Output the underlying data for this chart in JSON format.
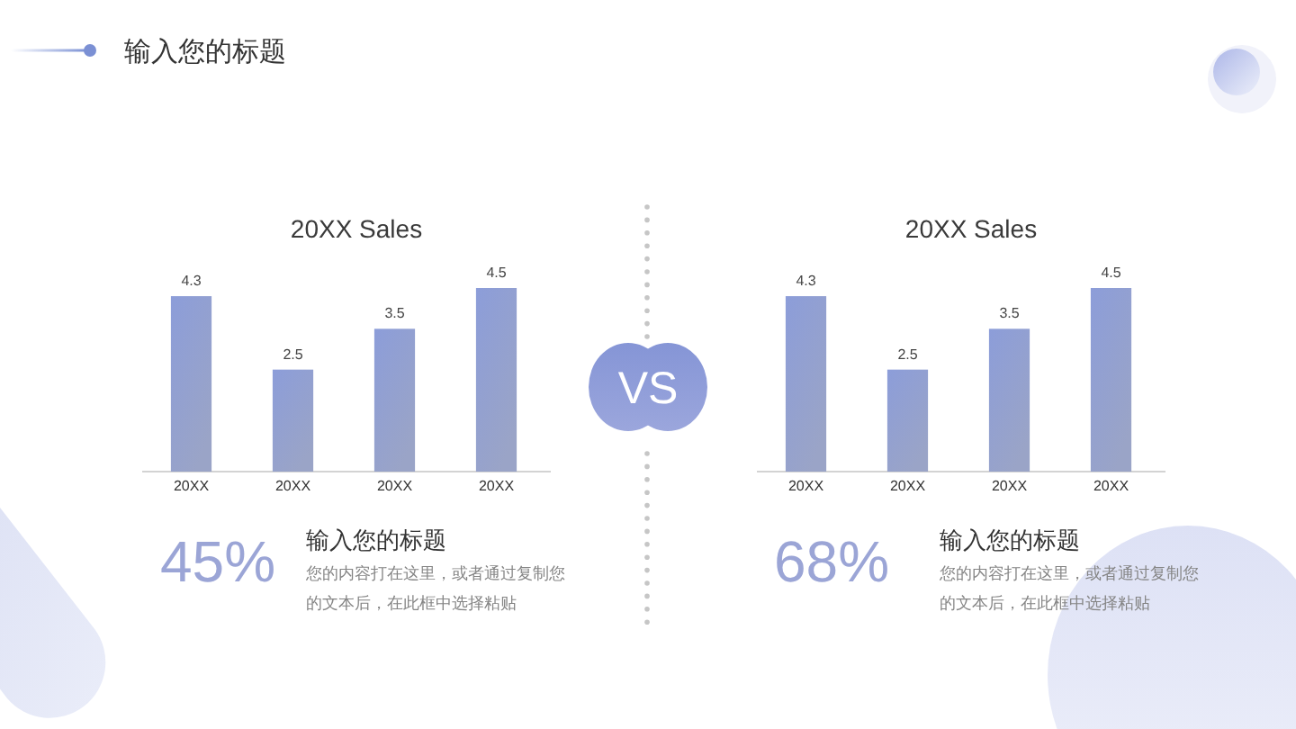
{
  "chart_data": [
    {
      "type": "other",
      "title": "输入您的标题",
      "annotations": [
        "VS"
      ]
    },
    {
      "type": "bar",
      "title": "20XX Sales",
      "categories": [
        "20XX",
        "20XX",
        "20XX",
        "20XX"
      ],
      "values": [
        4.3,
        2.5,
        3.5,
        4.5
      ],
      "color": "#8c9dd9",
      "data_labels": true,
      "tick_labels": "x"
    },
    {
      "type": "bar",
      "title": "20XX Sales",
      "categories": [
        "20XX",
        "20XX",
        "20XX",
        "20XX"
      ],
      "values": [
        4.3,
        2.5,
        3.5,
        4.5
      ],
      "color": "#8c9dd9",
      "data_labels": true,
      "tick_labels": "x"
    },
    {
      "type": "other",
      "title": "输入您的标题",
      "annotations": [
        "45%",
        "您的内容打在这里，或者通过复制您的文本后，在此框中选择粘贴"
      ]
    },
    {
      "type": "other",
      "title": "输入您的标题",
      "annotations": [
        "68%",
        "您的内容打在这里，或者通过复制您的文本后，在此框中选择粘贴"
      ]
    }
  ]
}
